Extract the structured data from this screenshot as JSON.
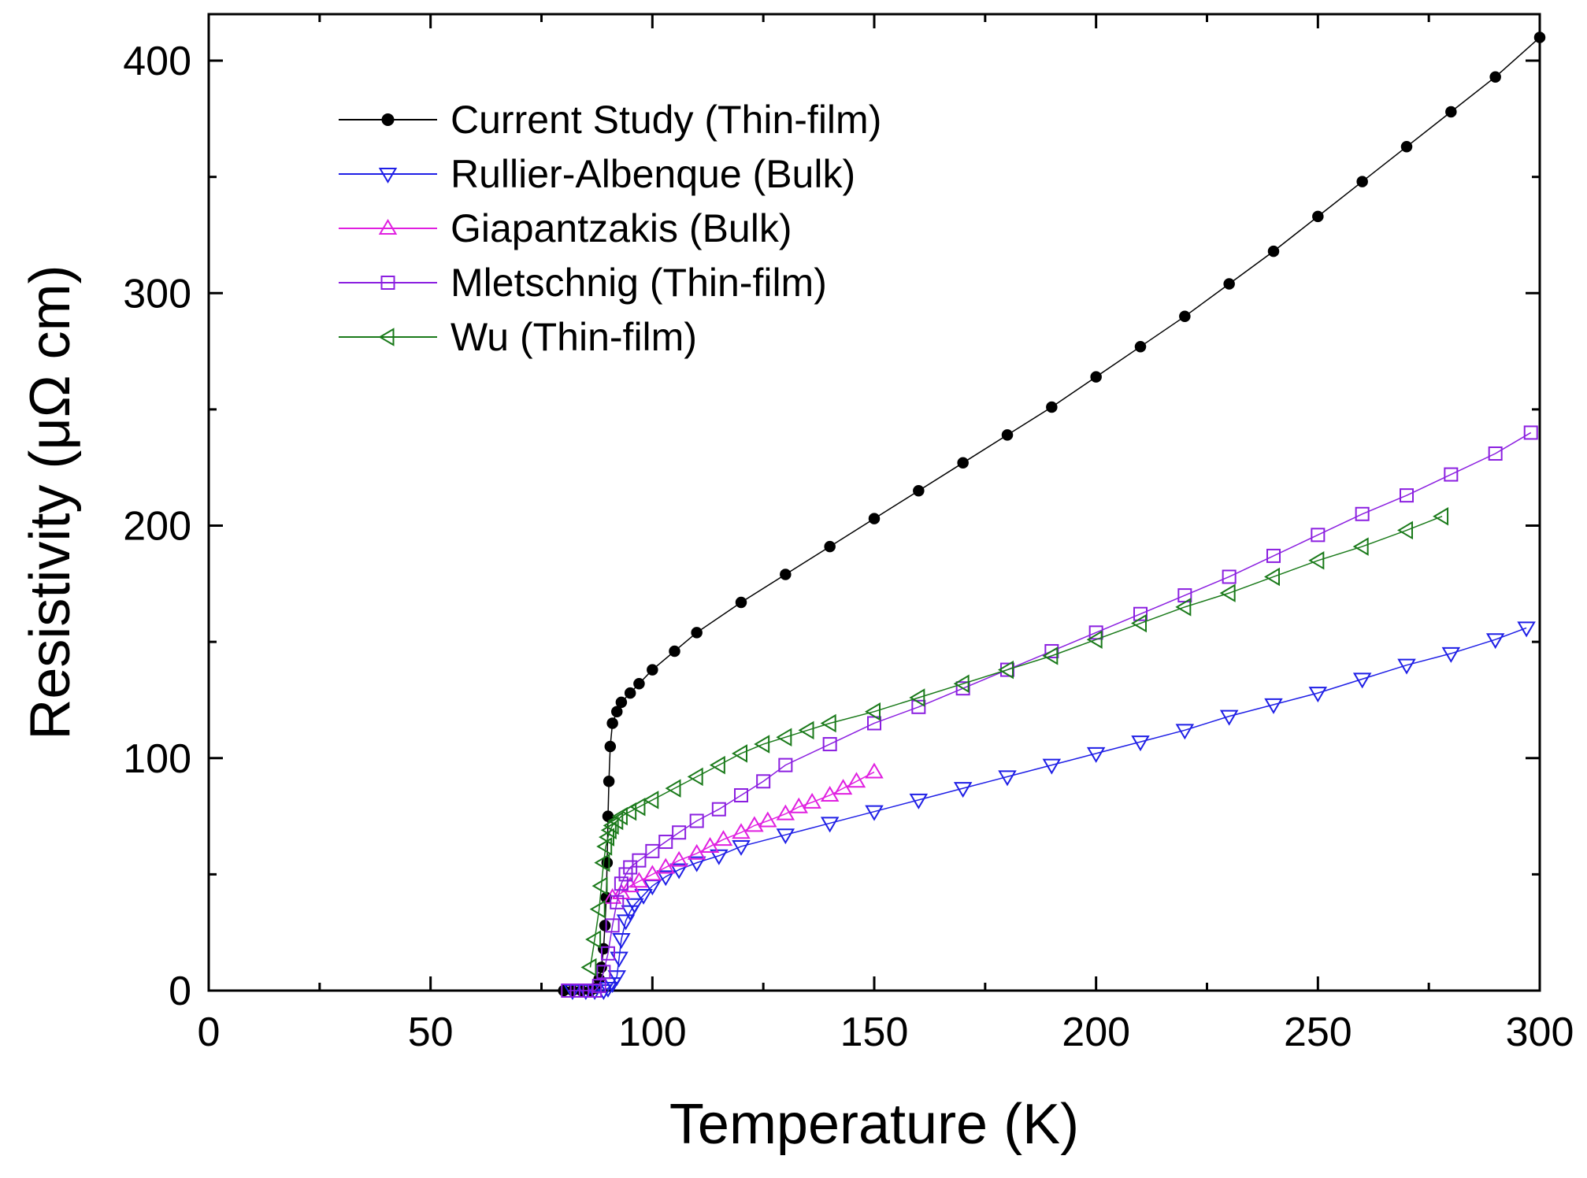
{
  "chart_data": {
    "type": "scatter",
    "title": "",
    "xlabel": "Temperature (K)",
    "ylabel": "Resistivity (μΩ cm)",
    "xlim": [
      0,
      300
    ],
    "ylim": [
      0,
      420
    ],
    "xticks": [
      0,
      50,
      100,
      150,
      200,
      250,
      300
    ],
    "yticks": [
      0,
      100,
      200,
      300,
      400
    ],
    "xtick_labels": [
      "0",
      "50",
      "100",
      "150",
      "200",
      "250",
      "300"
    ],
    "ytick_labels": [
      "0",
      "100",
      "200",
      "300",
      "400"
    ],
    "grid": false,
    "legend_position": "top-left",
    "series": [
      {
        "name": "Current Study (Thin-film)",
        "color": "#000000",
        "marker": "filled-circle",
        "x": [
          80,
          82,
          84,
          86,
          87,
          88,
          88.5,
          89,
          89.3,
          89.6,
          89.8,
          90,
          90.2,
          90.5,
          91,
          92,
          93,
          95,
          97,
          100,
          105,
          110,
          120,
          130,
          140,
          150,
          160,
          170,
          180,
          190,
          200,
          210,
          220,
          230,
          240,
          250,
          260,
          270,
          280,
          290,
          300
        ],
        "y": [
          0,
          0,
          0,
          0,
          1,
          5,
          10,
          18,
          28,
          40,
          55,
          75,
          90,
          105,
          115,
          120,
          124,
          128,
          132,
          138,
          146,
          154,
          167,
          179,
          191,
          203,
          215,
          227,
          239,
          251,
          264,
          277,
          290,
          304,
          318,
          333,
          348,
          363,
          378,
          393,
          410
        ]
      },
      {
        "name": "Rullier-Albenque (Bulk)",
        "color": "#1f1fe6",
        "marker": "open-triangle-down",
        "x": [
          82,
          85,
          87,
          89,
          90,
          91,
          92,
          92.5,
          93,
          94,
          95,
          96,
          98,
          100,
          103,
          106,
          110,
          115,
          120,
          130,
          140,
          150,
          160,
          170,
          180,
          190,
          200,
          210,
          220,
          230,
          240,
          250,
          260,
          270,
          280,
          290,
          297
        ],
        "y": [
          0,
          0,
          0,
          0,
          1,
          3,
          6,
          14,
          22,
          30,
          34,
          37,
          41,
          45,
          49,
          52,
          55,
          58,
          62,
          67,
          72,
          77,
          82,
          87,
          92,
          97,
          102,
          107,
          112,
          118,
          123,
          128,
          134,
          140,
          145,
          151,
          156
        ]
      },
      {
        "name": "Giapantzakis (Bulk)",
        "color": "#e01fe0",
        "marker": "open-triangle-up",
        "x": [
          91,
          93,
          95,
          97,
          100,
          103,
          106,
          110,
          113,
          116,
          120,
          123,
          126,
          130,
          133,
          136,
          140,
          143,
          146,
          150
        ],
        "y": [
          40,
          42,
          45,
          47,
          50,
          53,
          56,
          59,
          62,
          65,
          68,
          71,
          73,
          76,
          79,
          81,
          84,
          87,
          90,
          94
        ]
      },
      {
        "name": "Mletschnig (Thin-film)",
        "color": "#8b1fe0",
        "marker": "open-square",
        "x": [
          81,
          83,
          85,
          87,
          88,
          89,
          90,
          91,
          92,
          93,
          94,
          95,
          97,
          100,
          103,
          106,
          110,
          115,
          120,
          125,
          130,
          140,
          150,
          160,
          170,
          180,
          190,
          200,
          210,
          220,
          230,
          240,
          250,
          260,
          270,
          280,
          290,
          298
        ],
        "y": [
          0,
          0,
          0,
          0,
          2,
          8,
          16,
          28,
          38,
          46,
          50,
          53,
          56,
          60,
          64,
          68,
          73,
          78,
          84,
          90,
          97,
          106,
          115,
          122,
          130,
          138,
          146,
          154,
          162,
          170,
          178,
          187,
          196,
          205,
          213,
          222,
          231,
          240
        ]
      },
      {
        "name": "Wu (Thin-film)",
        "color": "#1a7a1a",
        "marker": "open-triangle-left",
        "x": [
          86,
          87,
          88,
          88.5,
          89,
          89.5,
          90,
          90.5,
          91,
          92,
          93,
          95,
          97,
          100,
          105,
          110,
          115,
          120,
          125,
          130,
          135,
          140,
          150,
          160,
          170,
          180,
          190,
          200,
          210,
          220,
          230,
          240,
          250,
          260,
          270,
          278
        ],
        "y": [
          10,
          22,
          35,
          45,
          55,
          62,
          66,
          69,
          71,
          73,
          75,
          77,
          79,
          82,
          87,
          92,
          97,
          102,
          106,
          109,
          112,
          115,
          120,
          126,
          132,
          138,
          144,
          151,
          158,
          165,
          171,
          178,
          185,
          191,
          198,
          204
        ]
      }
    ]
  }
}
